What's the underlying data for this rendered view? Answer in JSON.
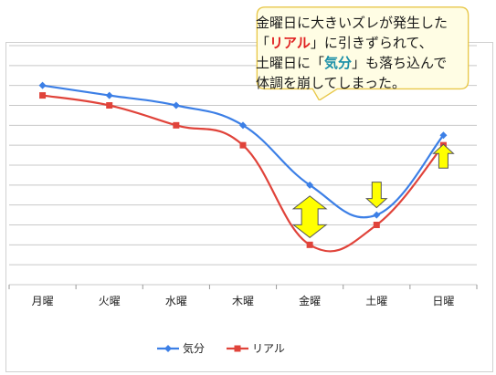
{
  "callout": {
    "line1": "金曜日に大きいズレが発生した",
    "line2_pre": "「",
    "line2_red": "リアル",
    "line2_post": "」に引きずられて、",
    "line3_pre": "土曜日に「",
    "line3_teal": "気分",
    "line3_post": "」も落ち込んで",
    "line4": "体調を崩してしまった。"
  },
  "chart_data": {
    "type": "line",
    "categories": [
      "月曜",
      "火曜",
      "水曜",
      "木曜",
      "金曜",
      "土曜",
      "日曜"
    ],
    "series": [
      {
        "name": "気分",
        "values": [
          9.0,
          8.5,
          8.0,
          7.0,
          4.0,
          2.5,
          6.5
        ],
        "color": "#3c7fe6",
        "marker": "diamond"
      },
      {
        "name": "リアル",
        "values": [
          8.5,
          8.0,
          7.0,
          6.0,
          1.0,
          2.0,
          6.0
        ],
        "color": "#e0433a",
        "marker": "square"
      }
    ],
    "ylim": [
      -1,
      11
    ],
    "grid": true,
    "legend_position": "bottom",
    "smooth": true,
    "arrows": [
      {
        "category": "金曜",
        "type": "double",
        "color": "#ffff00"
      },
      {
        "category": "土曜",
        "type": "down",
        "color": "#ffff00"
      },
      {
        "category": "日曜",
        "type": "up",
        "color": "#ffff00"
      }
    ]
  }
}
